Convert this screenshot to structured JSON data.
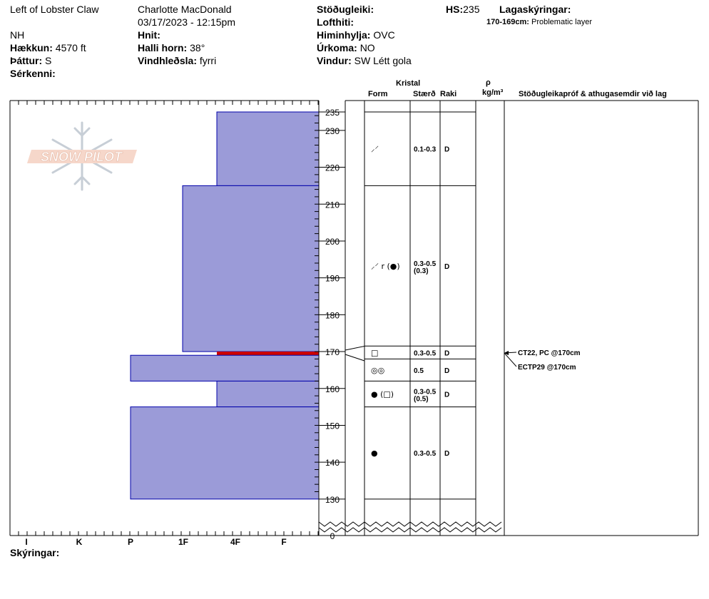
{
  "header": {
    "location": "Left of Lobster Claw",
    "observer": "Charlotte MacDonald",
    "datetime": "03/17/2023 - 12:15pm",
    "region": "NH",
    "elevation_label": "Hækkun:",
    "elevation": "4570 ft",
    "aspect_label": "Þáttur:",
    "aspect": "S",
    "features_label": "Sérkenni:",
    "coords_label": "Hnit:",
    "slope_label": "Halli horn:",
    "slope": "38°",
    "wind_loading_label": "Vindhleðsla:",
    "wind_loading": "fyrri",
    "stability_label": "Stöðugleiki:",
    "air_temp_label": "Lofthiti:",
    "sky_label": "Himinhylja:",
    "sky": "OVC",
    "precip_label": "Úrkoma:",
    "precip": "NO",
    "wind_label": "Vindur:",
    "wind": "SW Létt gola",
    "hs_label": "HS:",
    "hs": "235",
    "layer_notes_label": "Lagaskýringar:",
    "layer_note_range": "170-169cm:",
    "layer_note_text": "Problematic layer"
  },
  "columns": {
    "crystal": "Kristal",
    "form": "Form",
    "size": "Stærð",
    "moisture": "Raki",
    "rho": "ρ",
    "density_unit": "kg/m³",
    "tests": "Stöðugleikapróf & athugasemdir við lag"
  },
  "footer": {
    "notes_label": "Skýringar:"
  },
  "logo_text": "SNOW PILOT",
  "colors": {
    "layer_fill": "#9b9bd8",
    "layer_stroke": "#0000aa",
    "problem_line": "#cc0000"
  },
  "chart_data": {
    "type": "bar",
    "orientation": "horizontal",
    "x_label_kind": "hand hardness",
    "hardness_ticks": [
      "I",
      "K",
      "P",
      "1F",
      "4F",
      "F"
    ],
    "depth_ticks": [
      235,
      230,
      220,
      210,
      200,
      190,
      180,
      170,
      160,
      150,
      140,
      130,
      0
    ],
    "ylim": [
      130,
      235
    ],
    "layers": [
      {
        "top": 235,
        "bottom": 215,
        "hardness": "4F"
      },
      {
        "top": 215,
        "bottom": 170,
        "hardness": "1F"
      },
      {
        "top": 170,
        "bottom": 169,
        "hardness": "4F",
        "problematic": true
      },
      {
        "top": 169,
        "bottom": 162,
        "hardness": "P"
      },
      {
        "top": 162,
        "bottom": 155,
        "hardness": "4F"
      },
      {
        "top": 155,
        "bottom": 130,
        "hardness": "P"
      }
    ],
    "grain_rows": [
      {
        "top": 235,
        "bottom": 215,
        "size": "0.1-0.3",
        "moisture": "D",
        "form": "⸝⸍",
        "size2": ""
      },
      {
        "top": 215,
        "bottom": 171.5,
        "size": "0.3-0.5",
        "moisture": "D",
        "form": "⸝⸍ r (●)",
        "size2": "(0.3)"
      },
      {
        "top": 171.5,
        "bottom": 168,
        "size": "0.3-0.5",
        "moisture": "D",
        "form": "□",
        "size2": ""
      },
      {
        "top": 168,
        "bottom": 162,
        "size": "0.5",
        "moisture": "D",
        "form": "◎◎",
        "size2": ""
      },
      {
        "top": 162,
        "bottom": 155,
        "size": "0.3-0.5",
        "moisture": "D",
        "form": "● (□)",
        "size2": "(0.5)"
      },
      {
        "top": 155,
        "bottom": 130,
        "size": "0.3-0.5",
        "moisture": "D",
        "form": "●",
        "size2": ""
      }
    ],
    "tests": [
      {
        "depth": 170,
        "label": "CT22, PC @170cm"
      },
      {
        "depth": 170,
        "label": "ECTP29 @170cm"
      }
    ]
  }
}
